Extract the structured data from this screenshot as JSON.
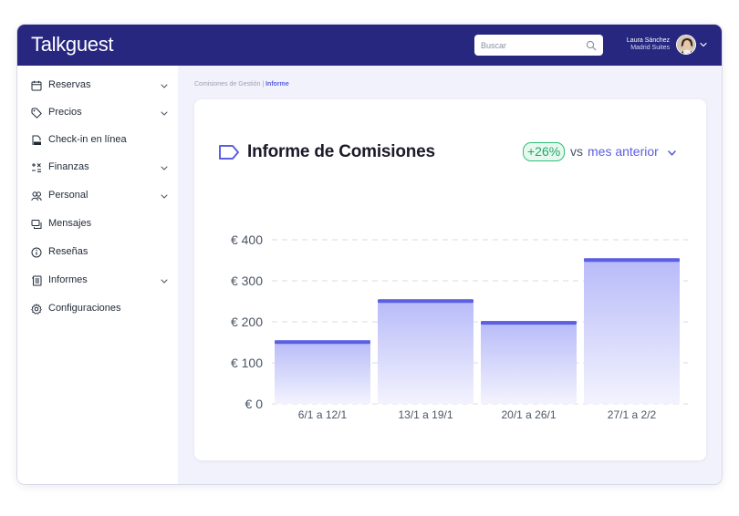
{
  "app": {
    "brand": "Talkguest"
  },
  "header": {
    "search": {
      "placeholder": "Buscar"
    },
    "user": {
      "name": "Laura Sánchez",
      "hotel": "Madrid Suites"
    }
  },
  "sidebar": {
    "items": [
      {
        "label": "Reservas",
        "icon": "calendar-icon",
        "expandable": true
      },
      {
        "label": "Precios",
        "icon": "tag-icon",
        "expandable": true
      },
      {
        "label": "Check-in en línea",
        "icon": "checkin-document-icon",
        "expandable": false
      },
      {
        "label": "Finanzas",
        "icon": "calculator-icon",
        "expandable": true
      },
      {
        "label": "Personal",
        "icon": "people-icon",
        "expandable": true
      },
      {
        "label": "Mensajes",
        "icon": "chat-icon",
        "expandable": false
      },
      {
        "label": "Reseñas",
        "icon": "info-circle-icon",
        "expandable": false
      },
      {
        "label": "Informes",
        "icon": "report-icon",
        "expandable": true
      },
      {
        "label": "Configuraciones",
        "icon": "gear-icon",
        "expandable": false
      }
    ]
  },
  "breadcrumb": {
    "parent": "Comisiones de Gestión",
    "separator": " | ",
    "current": "Informe"
  },
  "report": {
    "title": "Informe de Comisiones",
    "delta": "+26%",
    "vs": "vs",
    "period": "mes anterior"
  },
  "colors": {
    "header": "#272780",
    "accent": "#5b5fe0",
    "positive": "#22a866",
    "bar_top": "#5b5fe0",
    "bar_fill_top": "#b7baf8",
    "bar_fill_bottom": "#f3f3fe"
  },
  "chart_data": {
    "type": "bar",
    "categories": [
      "6/1 a 12/1",
      "13/1 a 19/1",
      "20/1 a 26/1",
      "27/1 a 2/2"
    ],
    "values": [
      155,
      255,
      202,
      355
    ],
    "ylim": [
      0,
      400
    ],
    "yticks": [
      0,
      100,
      200,
      300,
      400
    ],
    "ytick_labels": [
      "€ 0",
      "€ 100",
      "€ 200",
      "€ 300",
      "€ 400"
    ],
    "grid": true
  }
}
